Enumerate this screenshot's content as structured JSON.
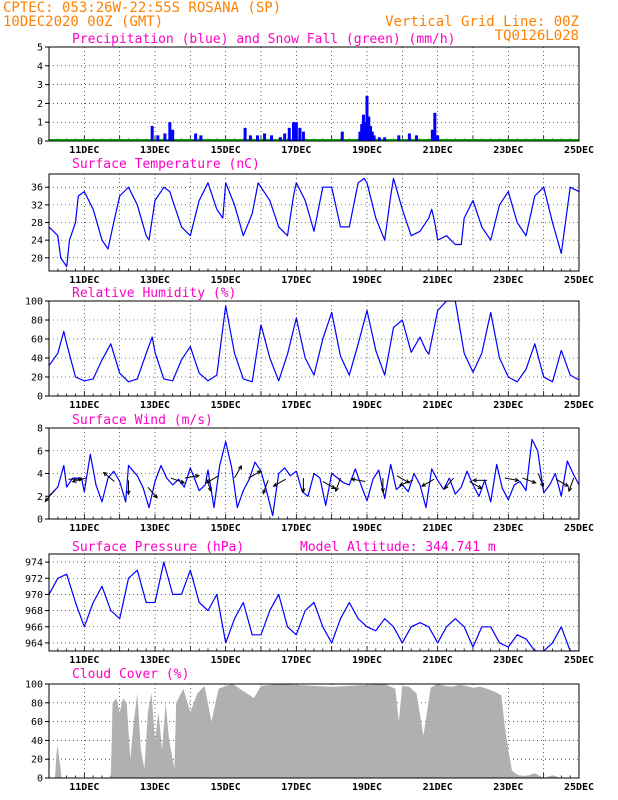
{
  "header": {
    "left_line1": "CPTEC:  053:26W-22:55S  ROSANA (SP)",
    "left_line2": "10DEC2020 00Z (GMT)",
    "right_line1": "Vertical Grid Line: 00Z",
    "right_line2": "TQ0126L028",
    "color": "#ff8000"
  },
  "colors": {
    "title": "#ff00c8",
    "line": "#0000ff",
    "snow": "#00b000",
    "cloud": "#b0b0b0",
    "arrow": "#000000"
  },
  "x_ticks": [
    "11DEC",
    "13DEC",
    "15DEC",
    "17DEC",
    "19DEC",
    "21DEC",
    "23DEC",
    "25DEC"
  ],
  "x_range_days": [
    10.0,
    25.0
  ],
  "chart_data": [
    {
      "id": "precip",
      "type": "bar",
      "title": "Precipitation (blue) and Snow Fall (green) (mm/h)",
      "ylim": [
        0,
        5
      ],
      "yticks": [
        0,
        1,
        2,
        3,
        4,
        5
      ],
      "snow_values": "zero throughout",
      "events": [
        {
          "day": 12.92,
          "value": 0.8
        },
        {
          "day": 13.08,
          "value": 0.3
        },
        {
          "day": 13.28,
          "value": 0.4
        },
        {
          "day": 13.42,
          "value": 1.0
        },
        {
          "day": 13.5,
          "value": 0.6
        },
        {
          "day": 14.15,
          "value": 0.4
        },
        {
          "day": 14.3,
          "value": 0.3
        },
        {
          "day": 15.55,
          "value": 0.7
        },
        {
          "day": 15.7,
          "value": 0.3
        },
        {
          "day": 15.9,
          "value": 0.3
        },
        {
          "day": 16.1,
          "value": 0.4
        },
        {
          "day": 16.3,
          "value": 0.3
        },
        {
          "day": 16.55,
          "value": 0.2
        },
        {
          "day": 16.67,
          "value": 0.4
        },
        {
          "day": 16.8,
          "value": 0.7
        },
        {
          "day": 16.92,
          "value": 1.0
        },
        {
          "day": 17.0,
          "value": 1.0
        },
        {
          "day": 17.1,
          "value": 0.7
        },
        {
          "day": 17.2,
          "value": 0.5
        },
        {
          "day": 18.3,
          "value": 0.5
        },
        {
          "day": 18.8,
          "value": 0.5
        },
        {
          "day": 18.85,
          "value": 0.9
        },
        {
          "day": 18.9,
          "value": 1.4
        },
        {
          "day": 18.95,
          "value": 1.0
        },
        {
          "day": 19.0,
          "value": 2.4
        },
        {
          "day": 19.05,
          "value": 1.3
        },
        {
          "day": 19.1,
          "value": 0.8
        },
        {
          "day": 19.15,
          "value": 0.5
        },
        {
          "day": 19.2,
          "value": 0.3
        },
        {
          "day": 19.35,
          "value": 0.2
        },
        {
          "day": 19.5,
          "value": 0.2
        },
        {
          "day": 19.9,
          "value": 0.3
        },
        {
          "day": 20.2,
          "value": 0.4
        },
        {
          "day": 20.4,
          "value": 0.3
        },
        {
          "day": 20.85,
          "value": 0.6
        },
        {
          "day": 20.92,
          "value": 1.5
        },
        {
          "day": 21.0,
          "value": 0.3
        }
      ]
    },
    {
      "id": "temp",
      "type": "line",
      "title": "Surface Temperature (nC)",
      "ylim": [
        17,
        39
      ],
      "yticks": [
        20,
        24,
        28,
        32,
        36
      ],
      "x": [
        10.0,
        10.25,
        10.33,
        10.5,
        10.58,
        10.75,
        10.83,
        11.0,
        11.25,
        11.5,
        11.67,
        11.83,
        12.0,
        12.25,
        12.5,
        12.75,
        12.83,
        13.0,
        13.17,
        13.25,
        13.42,
        13.5,
        13.75,
        14.0,
        14.25,
        14.5,
        14.75,
        14.92,
        15.0,
        15.25,
        15.5,
        15.75,
        15.92,
        16.0,
        16.25,
        16.5,
        16.75,
        16.92,
        17.0,
        17.25,
        17.5,
        17.75,
        18.0,
        18.25,
        18.5,
        18.75,
        18.92,
        19.0,
        19.25,
        19.5,
        19.67,
        19.75,
        20.0,
        20.25,
        20.5,
        20.75,
        20.83,
        20.92,
        21.0,
        21.25,
        21.5,
        21.67,
        21.75,
        22.0,
        22.25,
        22.5,
        22.75,
        23.0,
        23.25,
        23.5,
        23.75,
        24.0,
        24.25,
        24.5,
        24.75,
        25.0
      ],
      "values": [
        27,
        25,
        20,
        18,
        24,
        28,
        34,
        35,
        31,
        24,
        22,
        28,
        34,
        36,
        32,
        25,
        24,
        33,
        35,
        36,
        35,
        33,
        27,
        25,
        33,
        37,
        31,
        29,
        37,
        32,
        25,
        30,
        37,
        36,
        33,
        27,
        25,
        34,
        37,
        33,
        26,
        36,
        36,
        27,
        27,
        37,
        38,
        37,
        29,
        24,
        34,
        38,
        31,
        25,
        26,
        29,
        31,
        28,
        24,
        25,
        23,
        23,
        29,
        33,
        27,
        24,
        32,
        35,
        28,
        25,
        34,
        36,
        28,
        21,
        36,
        35
      ]
    },
    {
      "id": "rh",
      "type": "line",
      "title": "Relative Humidity (%)",
      "ylim": [
        0,
        100
      ],
      "yticks": [
        0,
        20,
        40,
        60,
        80,
        100
      ],
      "x": [
        10.0,
        10.25,
        10.42,
        10.5,
        10.75,
        11.0,
        11.25,
        11.5,
        11.75,
        12.0,
        12.25,
        12.5,
        12.75,
        12.92,
        13.0,
        13.25,
        13.5,
        13.75,
        14.0,
        14.25,
        14.5,
        14.75,
        15.0,
        15.25,
        15.5,
        15.75,
        16.0,
        16.25,
        16.5,
        16.75,
        17.0,
        17.25,
        17.5,
        17.75,
        18.0,
        18.25,
        18.5,
        18.75,
        19.0,
        19.25,
        19.5,
        19.75,
        20.0,
        20.25,
        20.5,
        20.67,
        20.75,
        20.92,
        21.0,
        21.25,
        21.5,
        21.75,
        22.0,
        22.25,
        22.5,
        22.75,
        23.0,
        23.25,
        23.5,
        23.75,
        24.0,
        24.25,
        24.5,
        24.75,
        25.0
      ],
      "values": [
        32,
        45,
        68,
        55,
        20,
        16,
        18,
        38,
        55,
        24,
        15,
        18,
        45,
        62,
        46,
        18,
        16,
        38,
        52,
        24,
        16,
        22,
        95,
        45,
        18,
        15,
        75,
        40,
        16,
        44,
        82,
        40,
        22,
        60,
        88,
        42,
        22,
        55,
        90,
        48,
        22,
        72,
        80,
        46,
        62,
        48,
        44,
        75,
        90,
        100,
        100,
        45,
        25,
        45,
        88,
        40,
        20,
        15,
        28,
        55,
        20,
        15,
        48,
        22,
        17
      ]
    },
    {
      "id": "wind",
      "type": "line",
      "title": "Surface Wind (m/s)",
      "ylim": [
        0,
        8
      ],
      "yticks": [
        0,
        2,
        4,
        6,
        8
      ],
      "x": [
        10.0,
        10.25,
        10.42,
        10.5,
        10.67,
        10.92,
        11.0,
        11.17,
        11.33,
        11.5,
        11.67,
        11.83,
        12.0,
        12.17,
        12.25,
        12.5,
        12.67,
        12.83,
        13.0,
        13.17,
        13.33,
        13.5,
        13.67,
        13.83,
        14.0,
        14.25,
        14.42,
        14.5,
        14.67,
        14.83,
        15.0,
        15.17,
        15.33,
        15.5,
        15.67,
        15.83,
        16.0,
        16.17,
        16.33,
        16.5,
        16.67,
        16.83,
        17.0,
        17.17,
        17.33,
        17.5,
        17.67,
        17.83,
        18.0,
        18.17,
        18.33,
        18.5,
        18.67,
        18.83,
        19.0,
        19.17,
        19.33,
        19.5,
        19.67,
        19.83,
        20.0,
        20.17,
        20.33,
        20.5,
        20.67,
        20.83,
        21.0,
        21.17,
        21.33,
        21.5,
        21.67,
        21.83,
        22.0,
        22.17,
        22.33,
        22.5,
        22.67,
        22.83,
        23.0,
        23.17,
        23.33,
        23.5,
        23.67,
        23.83,
        24.0,
        24.17,
        24.33,
        24.5,
        24.67,
        24.83,
        25.0
      ],
      "values": [
        2.0,
        2.8,
        4.7,
        2.8,
        3.6,
        3.6,
        2.4,
        5.7,
        3.0,
        1.5,
        3.6,
        4.2,
        3.3,
        1.5,
        4.7,
        3.8,
        2.7,
        1.0,
        3.3,
        4.7,
        3.6,
        3.0,
        3.5,
        2.8,
        4.5,
        2.5,
        3.0,
        4.3,
        1.0,
        4.7,
        6.8,
        4.5,
        1.0,
        2.5,
        3.5,
        5.0,
        4.2,
        2.3,
        0.3,
        4.0,
        4.5,
        3.8,
        4.2,
        2.4,
        2.0,
        4.0,
        3.6,
        1.2,
        4.0,
        3.6,
        3.2,
        3.0,
        4.4,
        3.0,
        1.6,
        3.5,
        4.3,
        1.8,
        4.8,
        2.6,
        3.0,
        2.4,
        4.0,
        3.0,
        1.0,
        4.4,
        3.4,
        2.6,
        3.6,
        2.2,
        2.8,
        4.2,
        3.0,
        2.0,
        3.4,
        1.5,
        4.8,
        2.7,
        1.7,
        3.0,
        3.3,
        2.5,
        7.0,
        6.0,
        2.3,
        3.0,
        4.0,
        2.0,
        5.1,
        4.0,
        3.0
      ],
      "arrows": [
        {
          "day": 10.15,
          "speed": 2.5,
          "from_deg": 40
        },
        {
          "day": 10.55,
          "speed": 3.5,
          "from_deg": 270
        },
        {
          "day": 11.05,
          "speed": 3.6,
          "from_deg": 75
        },
        {
          "day": 11.85,
          "speed": 3.3,
          "from_deg": 130
        },
        {
          "day": 12.25,
          "speed": 3.4,
          "from_deg": 0
        },
        {
          "day": 12.8,
          "speed": 2.8,
          "from_deg": 320
        },
        {
          "day": 13.45,
          "speed": 3.6,
          "from_deg": 290
        },
        {
          "day": 13.85,
          "speed": 3.6,
          "from_deg": 260
        },
        {
          "day": 14.45,
          "speed": 3.6,
          "from_deg": 340
        },
        {
          "day": 14.8,
          "speed": 3.8,
          "from_deg": 60
        },
        {
          "day": 15.25,
          "speed": 3.6,
          "from_deg": 210
        },
        {
          "day": 15.65,
          "speed": 3.6,
          "from_deg": 240
        },
        {
          "day": 16.2,
          "speed": 3.4,
          "from_deg": 20
        },
        {
          "day": 16.7,
          "speed": 3.5,
          "from_deg": 60
        },
        {
          "day": 17.2,
          "speed": 3.6,
          "from_deg": 0
        },
        {
          "day": 17.75,
          "speed": 3.3,
          "from_deg": 300
        },
        {
          "day": 18.25,
          "speed": 3.6,
          "from_deg": 20
        },
        {
          "day": 18.95,
          "speed": 3.3,
          "from_deg": 100
        },
        {
          "day": 19.45,
          "speed": 3.6,
          "from_deg": 0
        },
        {
          "day": 19.85,
          "speed": 3.8,
          "from_deg": 300
        },
        {
          "day": 20.3,
          "speed": 3.4,
          "from_deg": 70
        },
        {
          "day": 20.9,
          "speed": 3.5,
          "from_deg": 60
        },
        {
          "day": 21.45,
          "speed": 3.6,
          "from_deg": 40
        },
        {
          "day": 21.9,
          "speed": 3.3,
          "from_deg": 300
        },
        {
          "day": 22.4,
          "speed": 3.4,
          "from_deg": 90
        },
        {
          "day": 22.9,
          "speed": 3.6,
          "from_deg": 280
        },
        {
          "day": 23.4,
          "speed": 3.6,
          "from_deg": 290
        },
        {
          "day": 23.85,
          "speed": 4.0,
          "from_deg": 340
        },
        {
          "day": 24.35,
          "speed": 3.5,
          "from_deg": 300
        },
        {
          "day": 24.85,
          "speed": 3.6,
          "from_deg": 20
        }
      ]
    },
    {
      "id": "pres",
      "type": "line",
      "title": "Surface Pressure (hPa)",
      "subtitle": "Model Altitude: 344.741 m",
      "ylim": [
        963,
        975
      ],
      "yticks": [
        964,
        966,
        968,
        970,
        972,
        974
      ],
      "x": [
        10.0,
        10.25,
        10.5,
        10.75,
        11.0,
        11.25,
        11.5,
        11.75,
        12.0,
        12.25,
        12.5,
        12.75,
        13.0,
        13.25,
        13.5,
        13.75,
        14.0,
        14.25,
        14.5,
        14.75,
        15.0,
        15.25,
        15.5,
        15.75,
        16.0,
        16.25,
        16.5,
        16.75,
        17.0,
        17.25,
        17.5,
        17.75,
        18.0,
        18.25,
        18.5,
        18.75,
        19.0,
        19.25,
        19.5,
        19.75,
        20.0,
        20.25,
        20.5,
        20.75,
        21.0,
        21.25,
        21.5,
        21.75,
        22.0,
        22.25,
        22.5,
        22.75,
        23.0,
        23.25,
        23.5,
        23.75,
        24.0,
        24.25,
        24.5,
        24.75,
        25.0
      ],
      "values": [
        970,
        972,
        972.5,
        969,
        966,
        969,
        971,
        968,
        967,
        972,
        973,
        969,
        969,
        974,
        970,
        970,
        973,
        969,
        968,
        970,
        964,
        967,
        969,
        965,
        965,
        968,
        970,
        966,
        965,
        968,
        969,
        966,
        964,
        967,
        969,
        967,
        966,
        965.5,
        967,
        966,
        964,
        966,
        966.5,
        966,
        964,
        966,
        967,
        966,
        963.5,
        966,
        966,
        964,
        963.5,
        965,
        964.5,
        963,
        963,
        964,
        966,
        963,
        963
      ]
    },
    {
      "id": "cloud",
      "type": "area",
      "title": "Cloud Cover (%)",
      "ylim": [
        0,
        100
      ],
      "yticks": [
        0,
        20,
        40,
        60,
        80,
        100
      ],
      "x": [
        10.0,
        10.17,
        10.21,
        10.25,
        10.29,
        10.33,
        10.35,
        11.75,
        11.8,
        11.9,
        12.0,
        12.1,
        12.2,
        12.3,
        12.4,
        12.5,
        12.6,
        12.7,
        12.8,
        12.9,
        13.0,
        13.1,
        13.2,
        13.3,
        13.4,
        13.5,
        13.55,
        13.6,
        13.8,
        14.0,
        14.2,
        14.4,
        14.6,
        14.8,
        15.0,
        15.2,
        15.4,
        15.6,
        15.8,
        16.0,
        16.5,
        17.0,
        17.5,
        18.0,
        18.5,
        19.0,
        19.5,
        19.8,
        19.9,
        20.0,
        20.2,
        20.4,
        20.6,
        20.8,
        21.0,
        21.2,
        21.4,
        21.6,
        21.8,
        22.0,
        22.2,
        22.4,
        22.6,
        22.8,
        22.9,
        23.0,
        23.1,
        23.2,
        23.3,
        23.5,
        23.75,
        24.0,
        24.25,
        24.5,
        25.0
      ],
      "values": [
        0,
        0,
        25,
        35,
        20,
        10,
        0,
        0,
        80,
        85,
        70,
        85,
        80,
        20,
        60,
        90,
        30,
        10,
        70,
        90,
        40,
        70,
        30,
        80,
        40,
        20,
        10,
        80,
        95,
        70,
        90,
        98,
        60,
        95,
        98,
        100,
        95,
        90,
        85,
        98,
        100,
        99,
        98,
        97,
        98,
        99,
        100,
        95,
        60,
        98,
        97,
        90,
        45,
        96,
        100,
        98,
        97,
        99,
        98,
        96,
        97,
        95,
        92,
        88,
        55,
        30,
        8,
        5,
        3,
        2,
        5,
        0,
        3,
        0,
        0
      ]
    }
  ]
}
